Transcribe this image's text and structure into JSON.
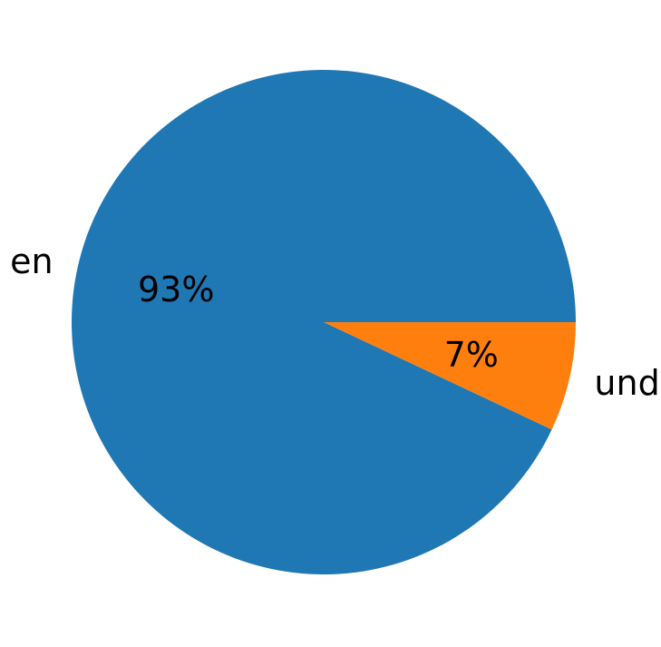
{
  "figure": {
    "background": "#ffffff"
  },
  "chart_data": {
    "type": "pie",
    "labels": [
      "en",
      "und"
    ],
    "values": [
      93,
      7
    ],
    "pct_labels": [
      "93%",
      "7%"
    ],
    "colors": [
      "#1f77b4",
      "#ff7f0e"
    ],
    "startangle": 0,
    "counterclock": true,
    "labeldistance": 1.1,
    "pctdistance": 0.6,
    "text_color": "#000000",
    "title": "",
    "legend": "none",
    "grid": "off"
  }
}
